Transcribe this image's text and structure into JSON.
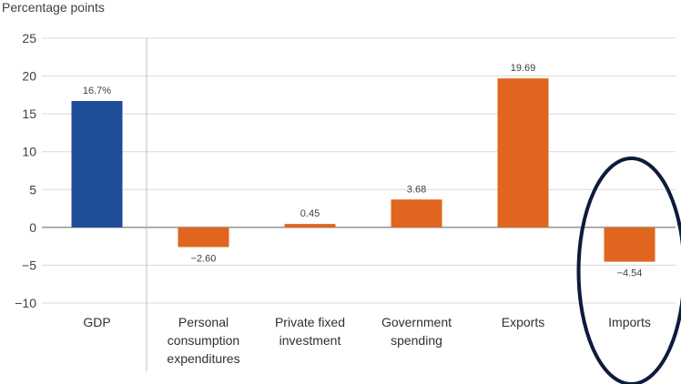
{
  "chart_data": {
    "type": "bar",
    "ylabel": "Percentage points",
    "ylim": [
      -10,
      25
    ],
    "yticks": [
      25,
      20,
      15,
      10,
      5,
      0,
      -5,
      -10
    ],
    "ytick_labels": [
      "25",
      "20",
      "15",
      "10",
      "5",
      "0",
      "−5",
      "−10"
    ],
    "grid": true,
    "categories": [
      {
        "label_lines": [
          "GDP"
        ]
      },
      {
        "label_lines": [
          "Personal",
          "consumption",
          "expenditures"
        ]
      },
      {
        "label_lines": [
          "Private fixed",
          "investment"
        ]
      },
      {
        "label_lines": [
          "Government",
          "spending"
        ]
      },
      {
        "label_lines": [
          "Exports"
        ]
      },
      {
        "label_lines": [
          "Imports"
        ]
      }
    ],
    "values": [
      16.7,
      -2.6,
      0.45,
      3.68,
      19.69,
      -4.54
    ],
    "data_labels": [
      "16.7%",
      "−2.60",
      "0.45",
      "3.68",
      "19.69",
      "−4.54"
    ],
    "colors": {
      "gdp": "#1f4e99",
      "component": "#e0661f",
      "grid": "#d9d9d9",
      "axis": "#bfbfbf",
      "highlight": "#0d1b3d"
    },
    "highlight_category": "Imports"
  }
}
